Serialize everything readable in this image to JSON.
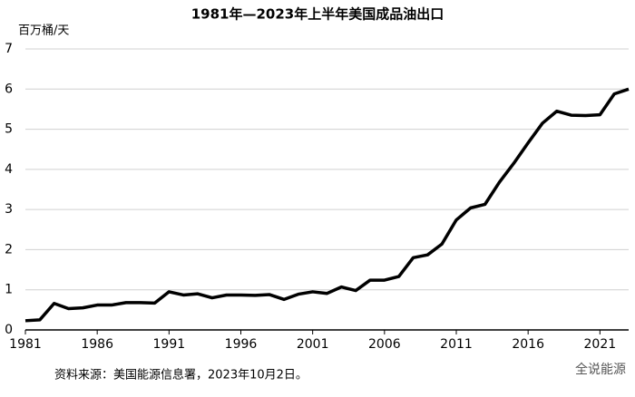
{
  "chart_data": {
    "type": "line",
    "title": "1981年—2023年上半年美国成品油出口",
    "y_label": "百万桶/天",
    "source": "资料来源：美国能源信息署，2023年10月2日。",
    "watermark": "全说能源",
    "x": [
      1981,
      1982,
      1983,
      1984,
      1985,
      1986,
      1987,
      1988,
      1989,
      1990,
      1991,
      1992,
      1993,
      1994,
      1995,
      1996,
      1997,
      1998,
      1999,
      2000,
      2001,
      2002,
      2003,
      2004,
      2005,
      2006,
      2007,
      2008,
      2009,
      2010,
      2011,
      2012,
      2013,
      2014,
      2015,
      2016,
      2017,
      2018,
      2019,
      2020,
      2021,
      2022,
      2023
    ],
    "series": [
      {
        "name": "成品油出口",
        "color": "#000000",
        "values": [
          0.23,
          0.25,
          0.66,
          0.53,
          0.55,
          0.62,
          0.62,
          0.68,
          0.68,
          0.67,
          0.95,
          0.87,
          0.9,
          0.8,
          0.87,
          0.87,
          0.86,
          0.88,
          0.76,
          0.89,
          0.95,
          0.91,
          1.07,
          0.98,
          1.24,
          1.24,
          1.33,
          1.8,
          1.87,
          2.14,
          2.74,
          3.04,
          3.13,
          3.68,
          4.15,
          4.66,
          5.15,
          5.45,
          5.35,
          5.34,
          5.36,
          5.88,
          6.0
        ]
      }
    ],
    "xlim": [
      1981,
      2023
    ],
    "xticks": [
      1981,
      1986,
      1991,
      1996,
      2001,
      2006,
      2011,
      2016,
      2021
    ],
    "ylim": [
      0,
      7
    ],
    "yticks": [
      0,
      1,
      2,
      3,
      4,
      5,
      6,
      7
    ],
    "grid": true
  }
}
